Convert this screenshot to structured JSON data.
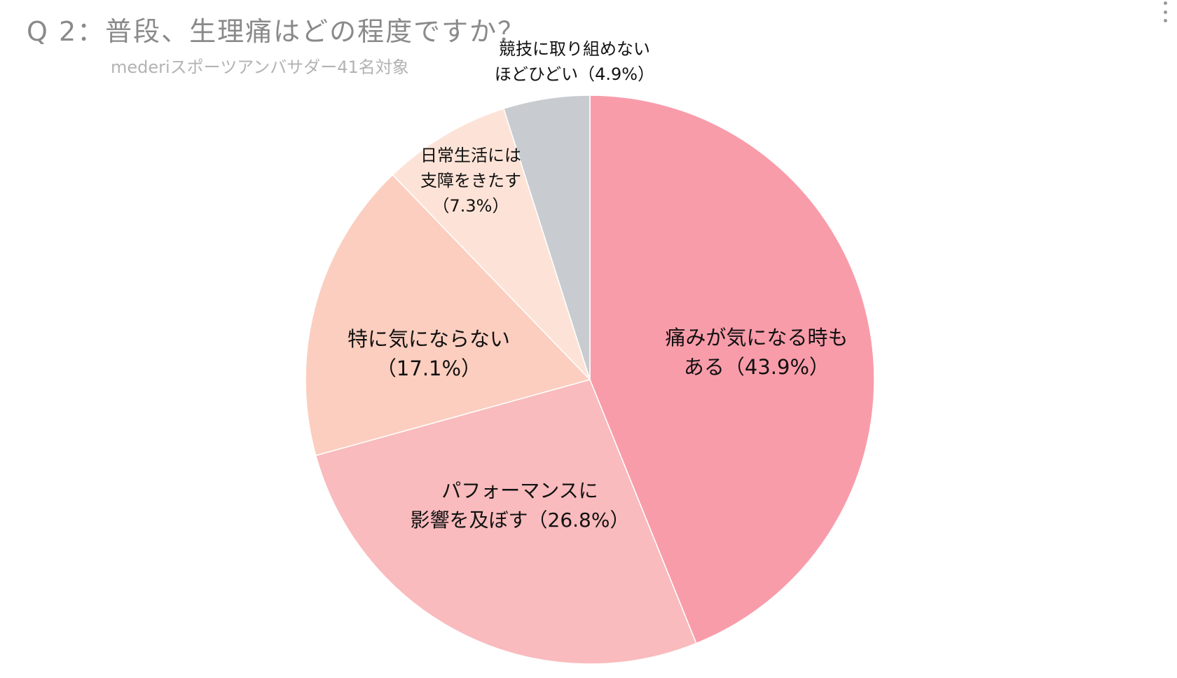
{
  "title": "Q 2：普段、生理痛はどの程度ですか？",
  "subtitle": "mederiスポーツアンバサダー41名対象",
  "colors": {
    "title": "#8a8a8a",
    "subtitle": "#b3b3b3",
    "slice_1": "#f99caa",
    "slice_2": "#f9bbbd",
    "slice_3": "#fccebf",
    "slice_4": "#fde3d7",
    "slice_5": "#c8ccd0"
  },
  "chart_data": {
    "type": "pie",
    "title": "Q 2：普段、生理痛はどの程度ですか？",
    "subtitle": "mederiスポーツアンバサダー41名対象",
    "start_angle": "12 o'clock, clockwise",
    "slices": [
      {
        "label_lines": [
          "痛みが気になる時も",
          "ある（43.9%）"
        ],
        "value": 43.9,
        "color": "#f99caa"
      },
      {
        "label_lines": [
          "パフォーマンスに",
          "影響を及ぼす（26.8%）"
        ],
        "value": 26.8,
        "color": "#f9bbbd"
      },
      {
        "label_lines": [
          "特に気にならない",
          "（17.1%）"
        ],
        "value": 17.1,
        "color": "#fccebf"
      },
      {
        "label_lines": [
          "日常生活には",
          "支障をきたす",
          "（7.3%）"
        ],
        "value": 7.3,
        "color": "#fde3d7"
      },
      {
        "label_lines": [
          "競技に取り組めない",
          "ほどひどい（4.9%）"
        ],
        "value": 4.9,
        "color": "#c8ccd0"
      }
    ]
  }
}
